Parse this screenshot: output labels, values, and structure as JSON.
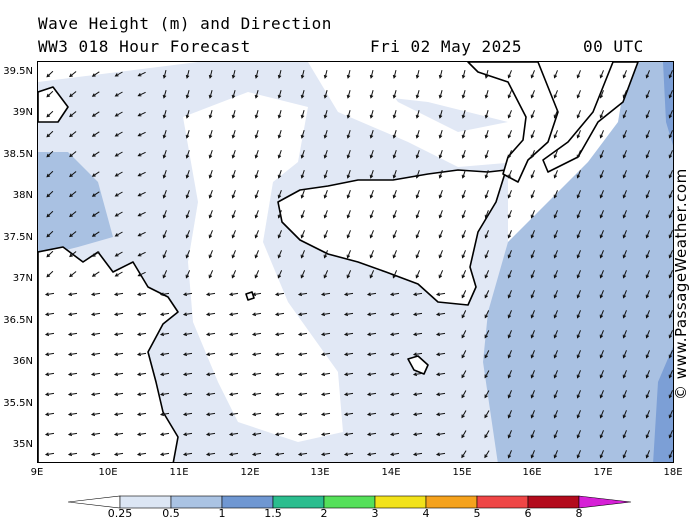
{
  "header": {
    "title": "Wave Height (m) and Direction",
    "model": "WW3 018 Hour Forecast",
    "date": "Fri 02 May 2025",
    "time": "00 UTC"
  },
  "copyright": "© www.PassageWeather.com",
  "axes": {
    "lat_labels": [
      "39.5N",
      "39N",
      "38.5N",
      "38N",
      "37.5N",
      "37N",
      "36.5N",
      "36N",
      "35.5N",
      "35N"
    ],
    "lon_labels": [
      "9E",
      "10E",
      "11E",
      "12E",
      "13E",
      "14E",
      "15E",
      "16E",
      "17E",
      "18E"
    ]
  },
  "legend": {
    "labels": [
      "0.25",
      "0.5",
      "1",
      "1.5",
      "2",
      "3",
      "4",
      "5",
      "6",
      "8"
    ],
    "colors": [
      "#ffffff",
      "#dce6f4",
      "#aac3e3",
      "#6f97d2",
      "#2bbd8e",
      "#55e05a",
      "#f2e21a",
      "#f5a21d",
      "#ef4646",
      "#b30b1c",
      "#d61fd6"
    ]
  },
  "map": {
    "land_color": "#ffffff",
    "coast_color": "#000000",
    "shading": {
      "light": "#e1e8f5",
      "medium": "#a9c1e2",
      "dark": "#7c9fd6"
    },
    "arrow_color": "#111111"
  }
}
